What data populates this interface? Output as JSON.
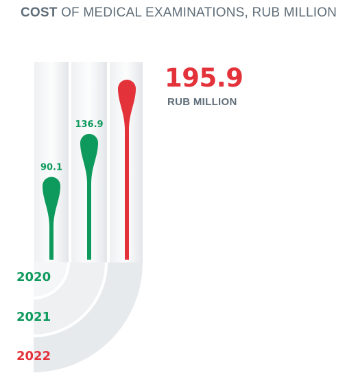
{
  "title": {
    "bold": "COST",
    "rest": " OF MEDICAL EXAMINATIONS, RUB MILLION"
  },
  "highlight": {
    "value": "195.9",
    "unit": "RUB MILLION"
  },
  "colors": {
    "green": "#0e9a5c",
    "red": "#e4323b",
    "text": "#5f6d78"
  },
  "chart_data": {
    "type": "bar",
    "title": "COST OF MEDICAL EXAMINATIONS, RUB MILLION",
    "categories": [
      "2020",
      "2021",
      "2022"
    ],
    "values": [
      90.1,
      136.9,
      195.9
    ],
    "labels": [
      "90.1",
      "136.9",
      ""
    ],
    "colors": [
      "#0e9a5c",
      "#0e9a5c",
      "#e4323b"
    ]
  }
}
